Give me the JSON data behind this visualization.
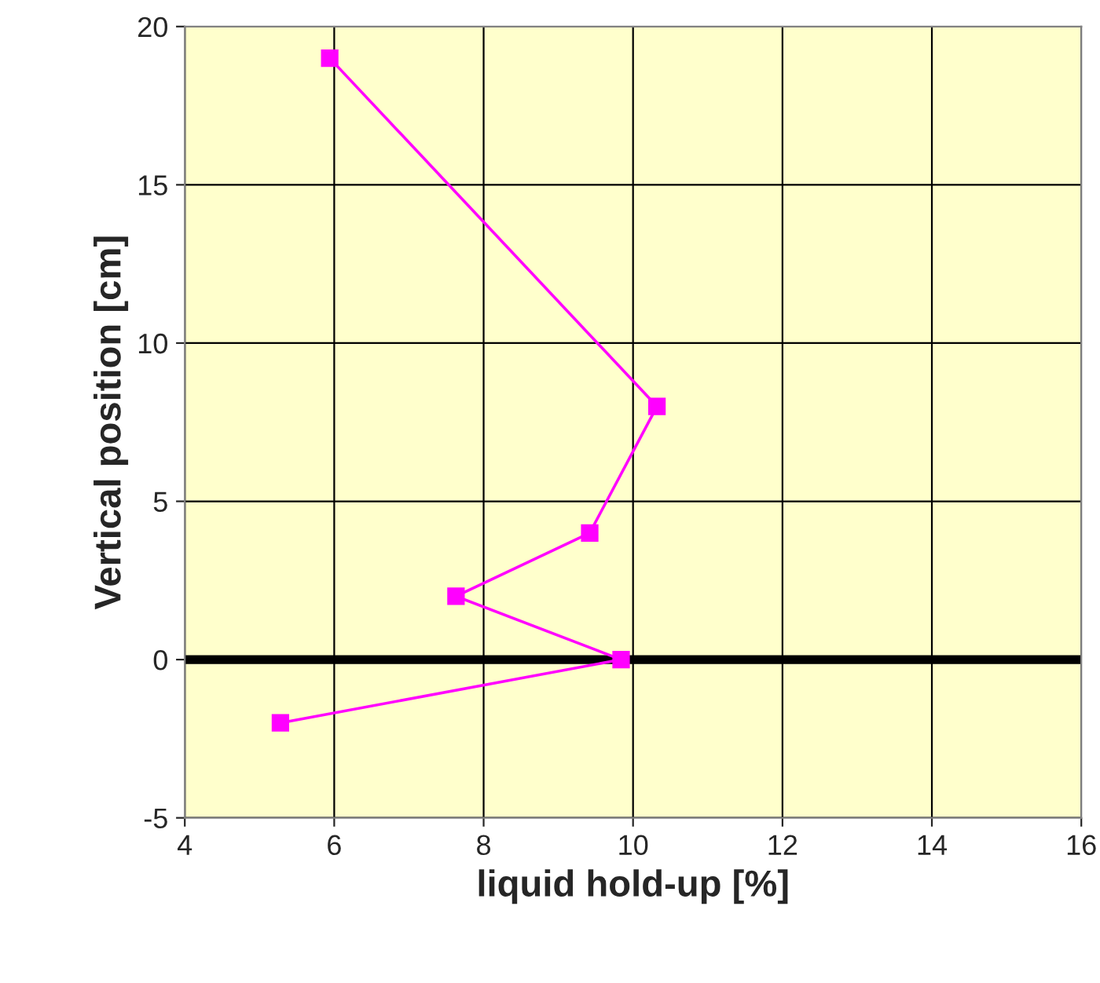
{
  "chart_data": {
    "type": "line",
    "xlabel": "liquid hold-up [%]",
    "ylabel": "Vertical position [cm]",
    "series": [
      {
        "color": "#ff00ff",
        "x": [
          5.94,
          10.32,
          9.42,
          7.63,
          9.84,
          5.28
        ],
        "values": [
          19,
          8,
          4,
          2,
          0,
          -2
        ]
      }
    ],
    "xlim": [
      4,
      16
    ],
    "xticks": [
      4,
      6,
      8,
      10,
      12,
      14,
      16
    ],
    "ylim": [
      -5,
      20
    ],
    "yticks": [
      -5,
      0,
      5,
      10,
      15,
      20
    ],
    "ref_lines": [
      {
        "axis": "y",
        "value": 0,
        "color": "#000000"
      }
    ],
    "grid": true,
    "marker": "square",
    "line_style": "solid"
  }
}
